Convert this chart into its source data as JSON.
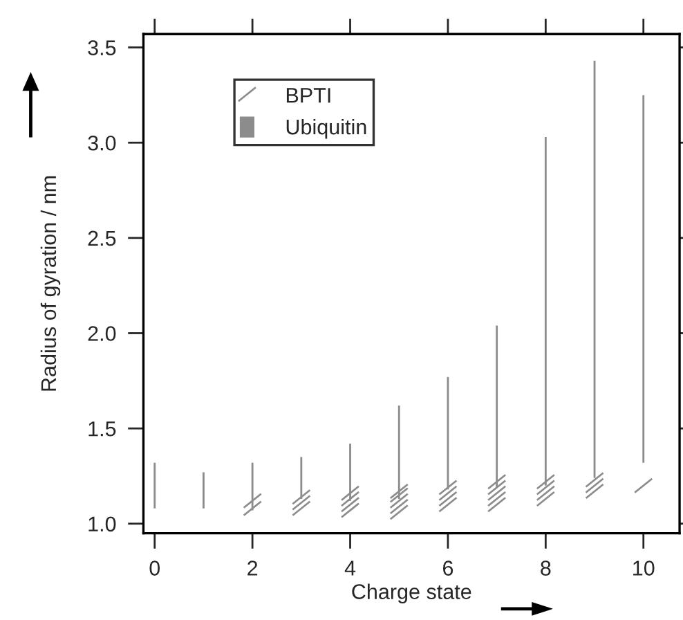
{
  "chart_data": {
    "type": "scatter",
    "xlabel": "Charge state",
    "ylabel": "Radius of gyration / nm",
    "xlim": [
      -0.23,
      10.74
    ],
    "ylim": [
      0.95,
      3.57
    ],
    "xticks": [
      0,
      2,
      4,
      6,
      8,
      10
    ],
    "yticks": [
      {
        "value": 1.0,
        "label": "1.0"
      },
      {
        "value": 1.5,
        "label": "1.5"
      },
      {
        "value": 2.0,
        "label": "2.0"
      },
      {
        "value": 2.5,
        "label": "2.5"
      },
      {
        "value": 3.0,
        "label": "3.0"
      },
      {
        "value": 3.5,
        "label": "3.5"
      }
    ],
    "legend": "top left",
    "grid": false,
    "series": [
      {
        "name": "BPTI",
        "color": "#8c8c8c",
        "x": [
          2,
          2,
          3,
          3,
          3,
          4,
          4,
          4,
          4,
          5,
          5,
          5,
          5,
          5,
          6,
          6,
          6,
          6,
          7,
          7,
          7,
          7,
          7,
          8,
          8,
          8,
          8,
          9,
          9,
          9,
          10
        ],
        "values": [
          1.08,
          1.12,
          1.08,
          1.11,
          1.14,
          1.07,
          1.1,
          1.13,
          1.16,
          1.06,
          1.09,
          1.12,
          1.15,
          1.17,
          1.1,
          1.13,
          1.16,
          1.19,
          1.1,
          1.13,
          1.16,
          1.19,
          1.22,
          1.13,
          1.16,
          1.19,
          1.22,
          1.17,
          1.2,
          1.23,
          1.2
        ]
      },
      {
        "name": "Ubiquitin",
        "color": "#8c8c8c",
        "type": "bar",
        "x": [
          0,
          1,
          2,
          3,
          4,
          5,
          6,
          7,
          8,
          9,
          10
        ],
        "base": [
          1.08,
          1.08,
          1.07,
          1.13,
          1.12,
          1.13,
          1.18,
          1.19,
          1.2,
          1.24,
          1.32
        ],
        "values": [
          0.24,
          0.19,
          0.25,
          0.22,
          0.3,
          0.49,
          0.59,
          0.85,
          1.83,
          2.19,
          1.93
        ]
      }
    ]
  }
}
